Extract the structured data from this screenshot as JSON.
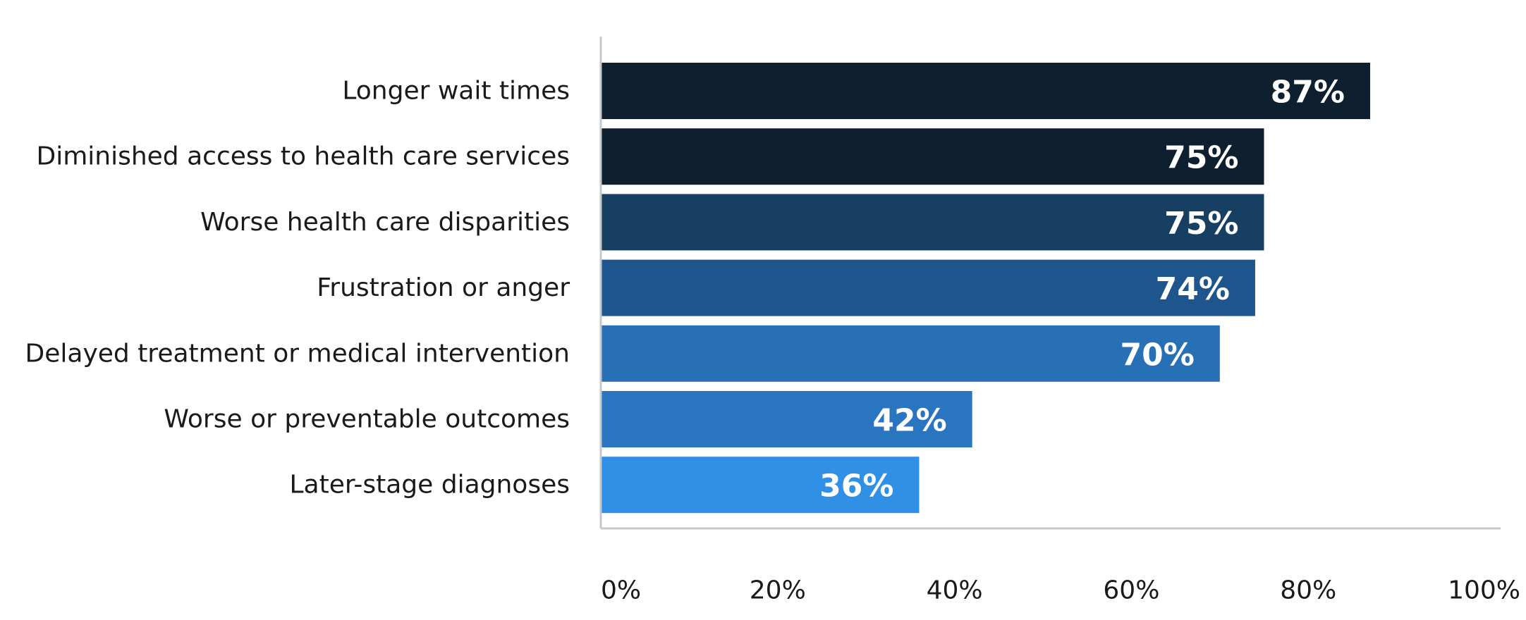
{
  "chart_data": {
    "type": "bar",
    "orientation": "horizontal",
    "categories": [
      "Longer wait times",
      "Diminished access to health care services",
      "Worse health care disparities",
      "Frustration or anger",
      "Delayed treatment or medical intervention",
      "Worse or preventable outcomes",
      "Later-stage diagnoses"
    ],
    "values": [
      87,
      75,
      75,
      74,
      70,
      42,
      36
    ],
    "value_labels": [
      "87%",
      "75%",
      "75%",
      "74%",
      "70%",
      "42%",
      "36%"
    ],
    "bar_colors": [
      "#0e1f30",
      "#0e1f30",
      "#163f62",
      "#1e558c",
      "#2770b5",
      "#2a75bf",
      "#2f90e6"
    ],
    "xlim": [
      0,
      100
    ],
    "x_ticks": [
      0,
      20,
      40,
      60,
      80,
      100
    ],
    "x_tick_labels": [
      "0%",
      "20%",
      "40%",
      "60%",
      "80%",
      "100%"
    ],
    "grid": false,
    "legend": "none"
  }
}
